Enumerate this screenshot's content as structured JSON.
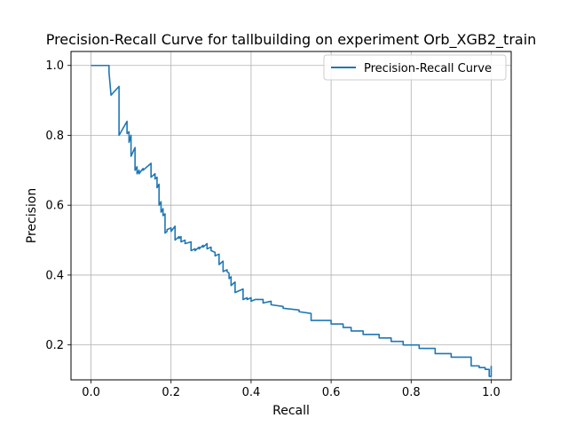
{
  "chart_data": {
    "type": "line",
    "title": "Precision-Recall Curve for tallbuilding on experiment Orb_XGB2_train",
    "xlabel": "Recall",
    "ylabel": "Precision",
    "xlim": [
      -0.05,
      1.05
    ],
    "ylim": [
      0.1,
      1.04
    ],
    "xticks": [
      {
        "value": 0.0,
        "label": "0.0"
      },
      {
        "value": 0.2,
        "label": "0.2"
      },
      {
        "value": 0.4,
        "label": "0.4"
      },
      {
        "value": 0.6,
        "label": "0.6"
      },
      {
        "value": 0.8,
        "label": "0.8"
      },
      {
        "value": 1.0,
        "label": "1.0"
      }
    ],
    "yticks": [
      {
        "value": 0.2,
        "label": "0.2"
      },
      {
        "value": 0.4,
        "label": "0.4"
      },
      {
        "value": 0.6,
        "label": "0.6"
      },
      {
        "value": 0.8,
        "label": "0.8"
      },
      {
        "value": 1.0,
        "label": "1.0"
      }
    ],
    "grid": true,
    "legend": {
      "position": "top-right",
      "entries": [
        "Precision-Recall Curve"
      ]
    },
    "series": [
      {
        "name": "Precision-Recall Curve",
        "color": "#1f77b4",
        "x": [
          0.0,
          0.045,
          0.045,
          0.05,
          0.07,
          0.07,
          0.09,
          0.09,
          0.095,
          0.095,
          0.1,
          0.1,
          0.11,
          0.11,
          0.115,
          0.115,
          0.12,
          0.12,
          0.13,
          0.13,
          0.15,
          0.15,
          0.16,
          0.16,
          0.165,
          0.165,
          0.17,
          0.17,
          0.175,
          0.175,
          0.18,
          0.18,
          0.185,
          0.185,
          0.19,
          0.19,
          0.2,
          0.2,
          0.21,
          0.21,
          0.22,
          0.22,
          0.225,
          0.225,
          0.235,
          0.235,
          0.25,
          0.25,
          0.26,
          0.26,
          0.27,
          0.27,
          0.28,
          0.28,
          0.29,
          0.29,
          0.3,
          0.3,
          0.31,
          0.31,
          0.32,
          0.32,
          0.33,
          0.33,
          0.34,
          0.34,
          0.345,
          0.345,
          0.35,
          0.35,
          0.36,
          0.36,
          0.37,
          0.37,
          0.38,
          0.38,
          0.39,
          0.39,
          0.4,
          0.4,
          0.41,
          0.41,
          0.43,
          0.43,
          0.45,
          0.45,
          0.48,
          0.48,
          0.52,
          0.52,
          0.55,
          0.55,
          0.6,
          0.6,
          0.63,
          0.63,
          0.65,
          0.65,
          0.68,
          0.68,
          0.72,
          0.72,
          0.75,
          0.75,
          0.78,
          0.78,
          0.82,
          0.82,
          0.86,
          0.86,
          0.9,
          0.9,
          0.95,
          0.95,
          0.97,
          0.97,
          0.985,
          0.985,
          0.995,
          0.995,
          1.0,
          1.0
        ],
        "y": [
          1.0,
          1.0,
          0.98,
          0.915,
          0.94,
          0.8,
          0.84,
          0.805,
          0.81,
          0.78,
          0.8,
          0.74,
          0.765,
          0.7,
          0.71,
          0.69,
          0.7,
          0.69,
          0.705,
          0.7,
          0.72,
          0.68,
          0.69,
          0.675,
          0.68,
          0.65,
          0.66,
          0.6,
          0.61,
          0.58,
          0.59,
          0.57,
          0.575,
          0.52,
          0.525,
          0.53,
          0.535,
          0.525,
          0.54,
          0.5,
          0.51,
          0.505,
          0.51,
          0.495,
          0.5,
          0.49,
          0.495,
          0.47,
          0.475,
          0.47,
          0.48,
          0.475,
          0.485,
          0.48,
          0.49,
          0.475,
          0.48,
          0.47,
          0.465,
          0.455,
          0.46,
          0.43,
          0.44,
          0.41,
          0.415,
          0.41,
          0.405,
          0.39,
          0.395,
          0.37,
          0.38,
          0.35,
          0.355,
          0.355,
          0.36,
          0.33,
          0.335,
          0.33,
          0.335,
          0.325,
          0.33,
          0.33,
          0.33,
          0.32,
          0.325,
          0.315,
          0.31,
          0.305,
          0.3,
          0.295,
          0.29,
          0.27,
          0.27,
          0.26,
          0.26,
          0.25,
          0.25,
          0.24,
          0.24,
          0.23,
          0.23,
          0.22,
          0.22,
          0.21,
          0.21,
          0.2,
          0.2,
          0.19,
          0.19,
          0.175,
          0.175,
          0.165,
          0.165,
          0.14,
          0.14,
          0.135,
          0.135,
          0.13,
          0.13,
          0.11,
          0.11,
          0.14
        ]
      }
    ]
  }
}
